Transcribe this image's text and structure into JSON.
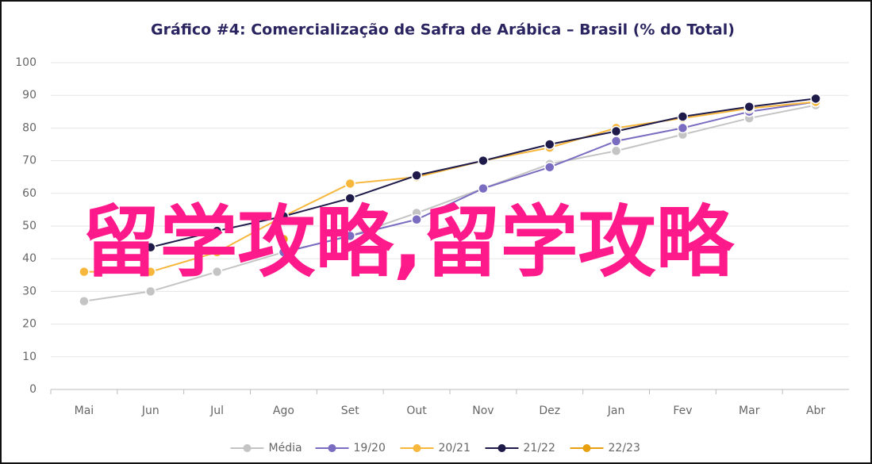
{
  "chart_data": {
    "type": "line",
    "title": "Gráfico #4: Comercialização de Safra de Arábica – Brasil (% do Total)",
    "categories": [
      "Mai",
      "Jun",
      "Jul",
      "Ago",
      "Set",
      "Out",
      "Nov",
      "Dez",
      "Jan",
      "Fev",
      "Mar",
      "Abr"
    ],
    "series": [
      {
        "name": "Média",
        "color": "#c4c4c4",
        "values": [
          27,
          30,
          36,
          42,
          47,
          54,
          61.5,
          69,
          73,
          78,
          83,
          87
        ]
      },
      {
        "name": "19/20",
        "color": "#7a6cc0",
        "values": [
          null,
          null,
          null,
          42,
          47,
          52,
          61.5,
          68,
          76,
          80,
          85,
          88
        ]
      },
      {
        "name": "20/21",
        "color": "#f6b73c",
        "values": [
          36,
          36,
          42,
          53,
          63,
          65,
          70,
          74,
          80,
          83,
          86,
          88
        ]
      },
      {
        "name": "21/22",
        "color": "#1e1a4a",
        "values": [
          null,
          43.5,
          48.5,
          53,
          58.5,
          65.5,
          70,
          75,
          79,
          83.5,
          86.5,
          89
        ]
      },
      {
        "name": "22/23",
        "color": "#e8a010",
        "values": [
          null,
          null,
          null,
          46,
          null,
          null,
          null,
          null,
          null,
          null,
          null,
          null
        ]
      }
    ],
    "ylim": [
      0,
      100
    ],
    "yticks": [
      0,
      10,
      20,
      30,
      40,
      50,
      60,
      70,
      80,
      90,
      100
    ],
    "grid": true,
    "legend": "bottom",
    "overlay_text": "留学攻略,留学攻略"
  }
}
